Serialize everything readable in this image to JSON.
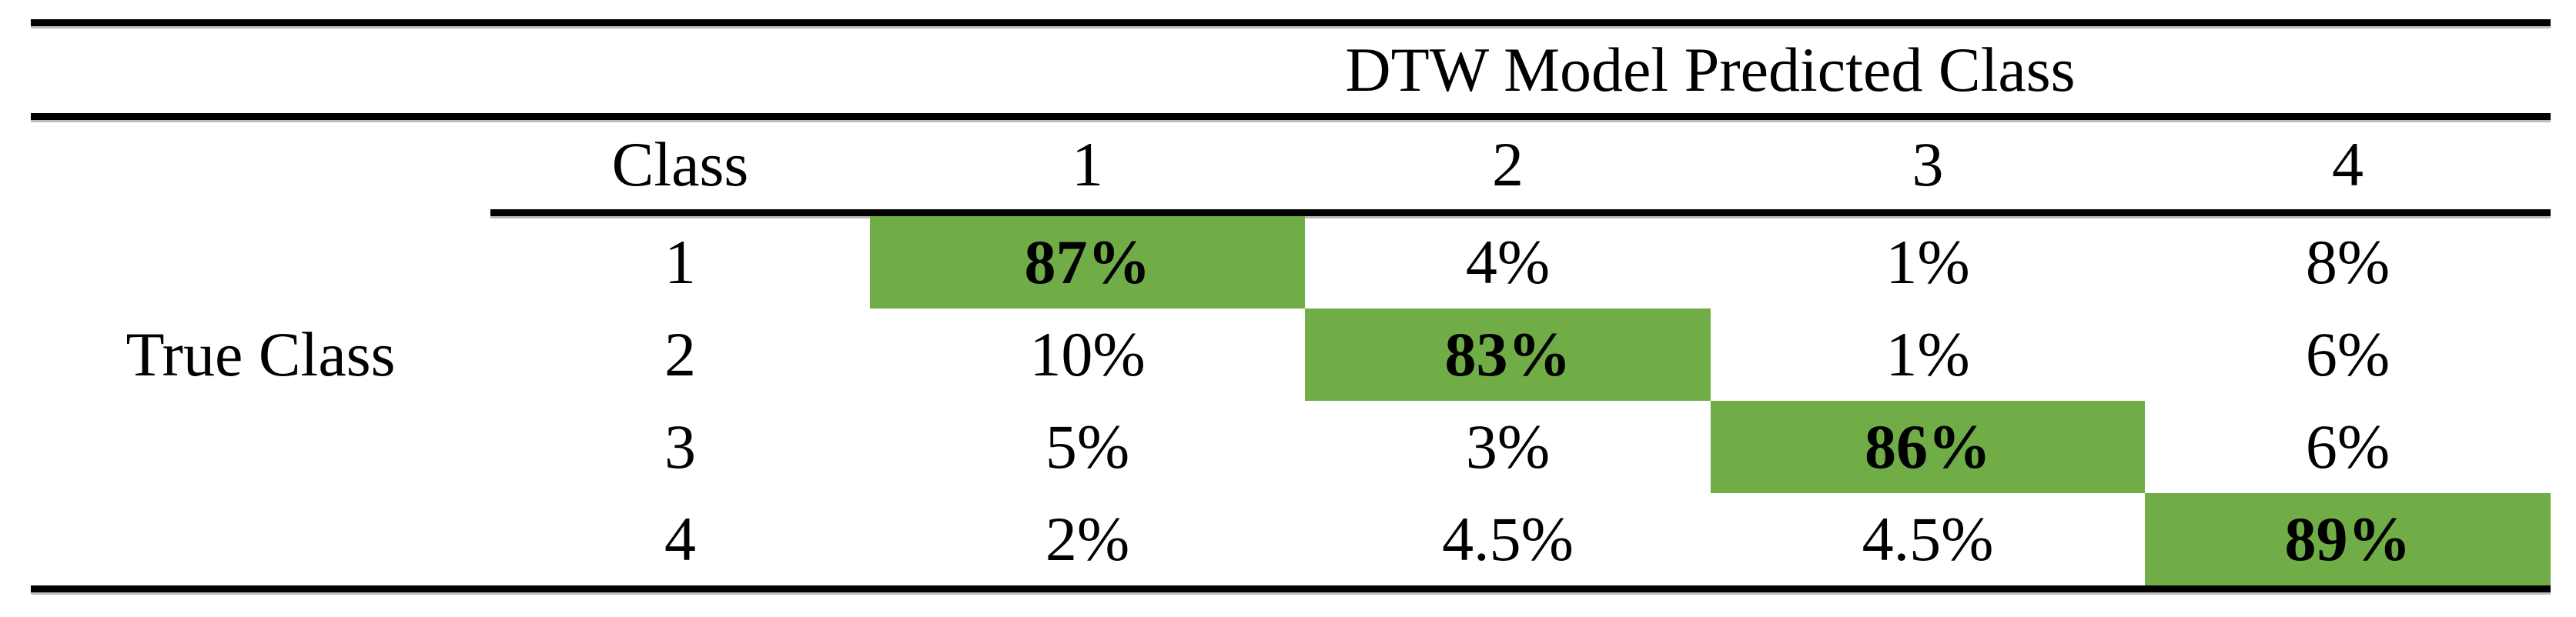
{
  "colors": {
    "background": "#FFFFFF",
    "text": "#000000",
    "rule": "#000000",
    "rule_shadow": "#BBBBBB",
    "highlight": "#70AD47"
  },
  "table": {
    "spanner_header": "DTW Model Predicted Class",
    "row_group_label": "True Class",
    "col_headers": {
      "class": "Class",
      "c1": "1",
      "c2": "2",
      "c3": "3",
      "c4": "4"
    },
    "rows": [
      {
        "label": "1",
        "c1": "87%",
        "c2": "4%",
        "c3": "1%",
        "c4": "8%"
      },
      {
        "label": "2",
        "c1": "10%",
        "c2": "83%",
        "c3": "1%",
        "c4": "6%"
      },
      {
        "label": "3",
        "c1": "5%",
        "c2": "3%",
        "c3": "86%",
        "c4": "6%"
      },
      {
        "label": "4",
        "c1": "2%",
        "c2": "4.5%",
        "c3": "4.5%",
        "c4": "89%"
      }
    ]
  },
  "chart_data": {
    "type": "heatmap",
    "title": "DTW Model Predicted Class",
    "xlabel": "DTW Model Predicted Class",
    "ylabel": "True Class",
    "categories": [
      "1",
      "2",
      "3",
      "4"
    ],
    "matrix_percent": [
      [
        87,
        4,
        1,
        8
      ],
      [
        10,
        83,
        1,
        6
      ],
      [
        5,
        3,
        86,
        6
      ],
      [
        2,
        4.5,
        4.5,
        89
      ]
    ],
    "diagonal_values_percent": [
      87,
      83,
      86,
      89
    ],
    "diagonal_highlight_color": "#70AD47",
    "legend_position": "none",
    "grid": false
  }
}
